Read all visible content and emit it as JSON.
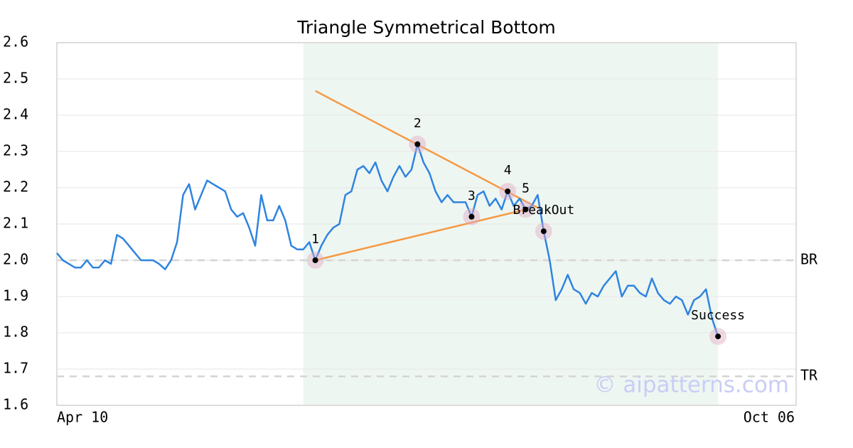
{
  "chart_data": {
    "type": "line",
    "title": "Triangle Symmetrical Bottom",
    "color": "#2f84e0",
    "categories": [
      "Apr 10",
      null,
      null,
      null,
      null,
      null,
      null,
      null,
      null,
      null,
      null,
      null,
      null,
      null,
      null,
      null,
      null,
      null,
      null,
      null,
      null,
      null,
      null,
      null,
      null,
      null,
      null,
      null,
      null,
      null,
      null,
      null,
      null,
      null,
      null,
      null,
      null,
      null,
      null,
      null,
      null,
      null,
      null,
      null,
      null,
      null,
      null,
      null,
      null,
      null,
      null,
      null,
      null,
      null,
      null,
      null,
      null,
      null,
      null,
      null,
      null,
      null,
      null,
      null,
      null,
      null,
      null,
      null,
      null,
      null,
      null,
      null,
      null,
      null,
      null,
      null,
      null,
      null,
      null,
      null,
      null,
      null,
      null,
      null,
      null,
      null,
      null,
      null,
      null,
      null,
      null,
      null,
      null,
      null,
      null,
      null,
      null,
      null,
      null,
      null,
      null,
      null,
      null,
      null,
      null,
      null,
      null,
      null,
      null,
      null,
      null,
      null,
      null,
      null,
      null,
      null,
      null,
      null,
      null,
      null,
      null,
      null,
      null,
      "Oct 06"
    ],
    "values": [
      2.02,
      2.0,
      1.99,
      1.98,
      1.98,
      2.0,
      1.98,
      1.98,
      2.0,
      1.99,
      2.07,
      2.06,
      2.04,
      2.02,
      2.0,
      2.0,
      2.0,
      1.99,
      1.975,
      2.0,
      2.05,
      2.18,
      2.21,
      2.14,
      2.18,
      2.22,
      2.21,
      2.2,
      2.19,
      2.14,
      2.12,
      2.13,
      2.09,
      2.04,
      2.18,
      2.11,
      2.11,
      2.15,
      2.11,
      2.04,
      2.03,
      2.03,
      2.05,
      2.0,
      2.04,
      2.07,
      2.09,
      2.1,
      2.18,
      2.19,
      2.25,
      2.26,
      2.24,
      2.27,
      2.22,
      2.19,
      2.23,
      2.26,
      2.23,
      2.25,
      2.32,
      2.27,
      2.24,
      2.19,
      2.16,
      2.18,
      2.16,
      2.16,
      2.16,
      2.12,
      2.18,
      2.19,
      2.15,
      2.17,
      2.14,
      2.19,
      2.15,
      2.17,
      2.14,
      2.15,
      2.18,
      2.08,
      2.0,
      1.89,
      1.92,
      1.96,
      1.92,
      1.91,
      1.88,
      1.91,
      1.9,
      1.93,
      1.95,
      1.97,
      1.9,
      1.93,
      1.93,
      1.91,
      1.9,
      1.95,
      1.91,
      1.89,
      1.88,
      1.9,
      1.89,
      1.85,
      1.89,
      1.9,
      1.92,
      1.84,
      1.79,
      null,
      null,
      null,
      null,
      null,
      null,
      null,
      null,
      null,
      null,
      null,
      null,
      null
    ],
    "ylim": [
      1.6,
      2.6
    ],
    "yticks": [
      1.6,
      1.7,
      1.8,
      1.9,
      {
        "value": 2,
        "label": "2.0"
      },
      2.1,
      2.2,
      2.3,
      2.4,
      2.5,
      2.6
    ],
    "grid": true,
    "highlight": {
      "start": 41,
      "end": 110,
      "color": "#eef6f2"
    },
    "trendlines": [
      {
        "color": "#f59a45",
        "start": [
          43,
          2.467
        ],
        "end": [
          80,
          2.145
        ]
      },
      {
        "color": "#f59a45",
        "start": [
          43,
          2.0
        ],
        "end": [
          78,
          2.14
        ]
      }
    ],
    "reference_lines": [
      {
        "label": "BR",
        "value": 2.0
      },
      {
        "label": "TR",
        "value": 1.68
      }
    ],
    "annotations": [
      {
        "label": "1",
        "index": 43
      },
      {
        "label": "2",
        "index": 60
      },
      {
        "label": "3",
        "index": 69
      },
      {
        "label": "4",
        "index": 75
      },
      {
        "label": "5",
        "index": 78
      },
      {
        "label": "BreakOut",
        "index": 81
      },
      {
        "label": "Success",
        "index": 110
      }
    ],
    "watermark": "© aipatterns.com"
  }
}
